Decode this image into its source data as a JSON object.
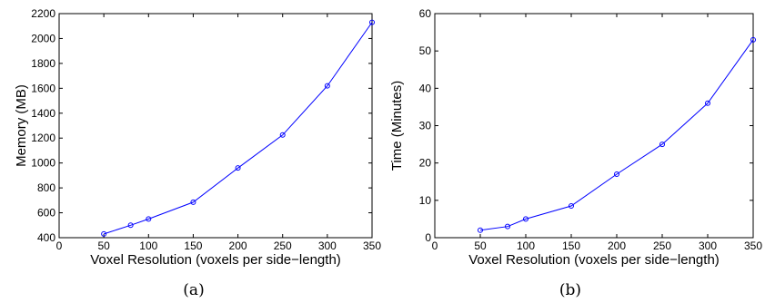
{
  "chart_data": [
    {
      "type": "line",
      "caption": "(a)",
      "xlabel": "Voxel Resolution (voxels per side−length)",
      "ylabel": "Memory (MB)",
      "xlim": [
        0,
        350
      ],
      "ylim": [
        400,
        2200
      ],
      "xticks": [
        0,
        50,
        100,
        150,
        200,
        250,
        300,
        350
      ],
      "yticks": [
        400,
        600,
        800,
        1000,
        1200,
        1400,
        1600,
        1800,
        2000,
        2200
      ],
      "grid": false,
      "series": [
        {
          "color": "#0000ff",
          "marker": "circle",
          "x": [
            50,
            80,
            100,
            150,
            200,
            250,
            300,
            350
          ],
          "y": [
            430,
            500,
            550,
            685,
            960,
            1225,
            1620,
            2130
          ]
        }
      ]
    },
    {
      "type": "line",
      "caption": "(b)",
      "xlabel": "Voxel Resolution (voxels per side−length)",
      "ylabel": "Time (Minutes)",
      "xlim": [
        0,
        350
      ],
      "ylim": [
        0,
        60
      ],
      "xticks": [
        0,
        50,
        100,
        150,
        200,
        250,
        300,
        350
      ],
      "yticks": [
        0,
        10,
        20,
        30,
        40,
        50,
        60
      ],
      "grid": false,
      "series": [
        {
          "color": "#0000ff",
          "marker": "circle",
          "x": [
            50,
            80,
            100,
            150,
            200,
            250,
            300,
            350
          ],
          "y": [
            2,
            3,
            5,
            8.5,
            17,
            25,
            36,
            53
          ]
        }
      ]
    }
  ]
}
